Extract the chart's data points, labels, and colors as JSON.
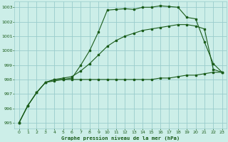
{
  "xlabel": "Graphe pression niveau de la mer (hPa)",
  "bg_color": "#cceee8",
  "grid_color": "#99cccc",
  "line_color": "#1a5c1a",
  "ylim": [
    994.6,
    1003.4
  ],
  "xlim": [
    -0.5,
    23.5
  ],
  "yticks": [
    995,
    996,
    997,
    998,
    999,
    1000,
    1001,
    1002,
    1003
  ],
  "xticks": [
    0,
    1,
    2,
    3,
    4,
    5,
    6,
    7,
    8,
    9,
    10,
    11,
    12,
    13,
    14,
    15,
    16,
    17,
    18,
    19,
    20,
    21,
    22,
    23
  ],
  "line1_x": [
    0,
    1,
    2,
    3,
    4,
    5,
    6,
    7,
    8,
    9,
    10,
    11,
    12,
    13,
    14,
    15,
    16,
    17,
    18,
    19,
    20,
    21,
    22,
    23
  ],
  "line1_y": [
    995.0,
    996.2,
    997.1,
    997.8,
    998.0,
    998.0,
    998.1,
    999.0,
    1000.0,
    1001.3,
    1002.8,
    1002.85,
    1002.9,
    1002.85,
    1003.0,
    1003.0,
    1003.1,
    1003.05,
    1003.0,
    1002.3,
    1002.2,
    1000.6,
    999.1,
    998.5
  ],
  "line2_x": [
    0,
    1,
    2,
    3,
    4,
    5,
    6,
    7,
    8,
    9,
    10,
    11,
    12,
    13,
    14,
    15,
    16,
    17,
    18,
    19,
    20,
    21,
    22,
    23
  ],
  "line2_y": [
    995.0,
    996.2,
    997.1,
    997.8,
    997.9,
    998.0,
    998.0,
    998.0,
    998.0,
    998.0,
    998.0,
    998.0,
    998.0,
    998.0,
    998.0,
    998.0,
    998.1,
    998.1,
    998.2,
    998.3,
    998.3,
    998.4,
    998.5,
    998.5
  ],
  "line3_x": [
    0,
    1,
    2,
    3,
    4,
    5,
    6,
    7,
    8,
    9,
    10,
    11,
    12,
    13,
    14,
    15,
    16,
    17,
    18,
    19,
    20,
    21,
    22,
    23
  ],
  "line3_y": [
    995.0,
    996.2,
    997.1,
    997.8,
    998.0,
    998.1,
    998.2,
    998.6,
    999.1,
    999.7,
    1000.3,
    1000.7,
    1001.0,
    1001.2,
    1001.4,
    1001.5,
    1001.6,
    1001.7,
    1001.8,
    1001.8,
    1001.7,
    1001.5,
    998.7,
    998.5
  ]
}
